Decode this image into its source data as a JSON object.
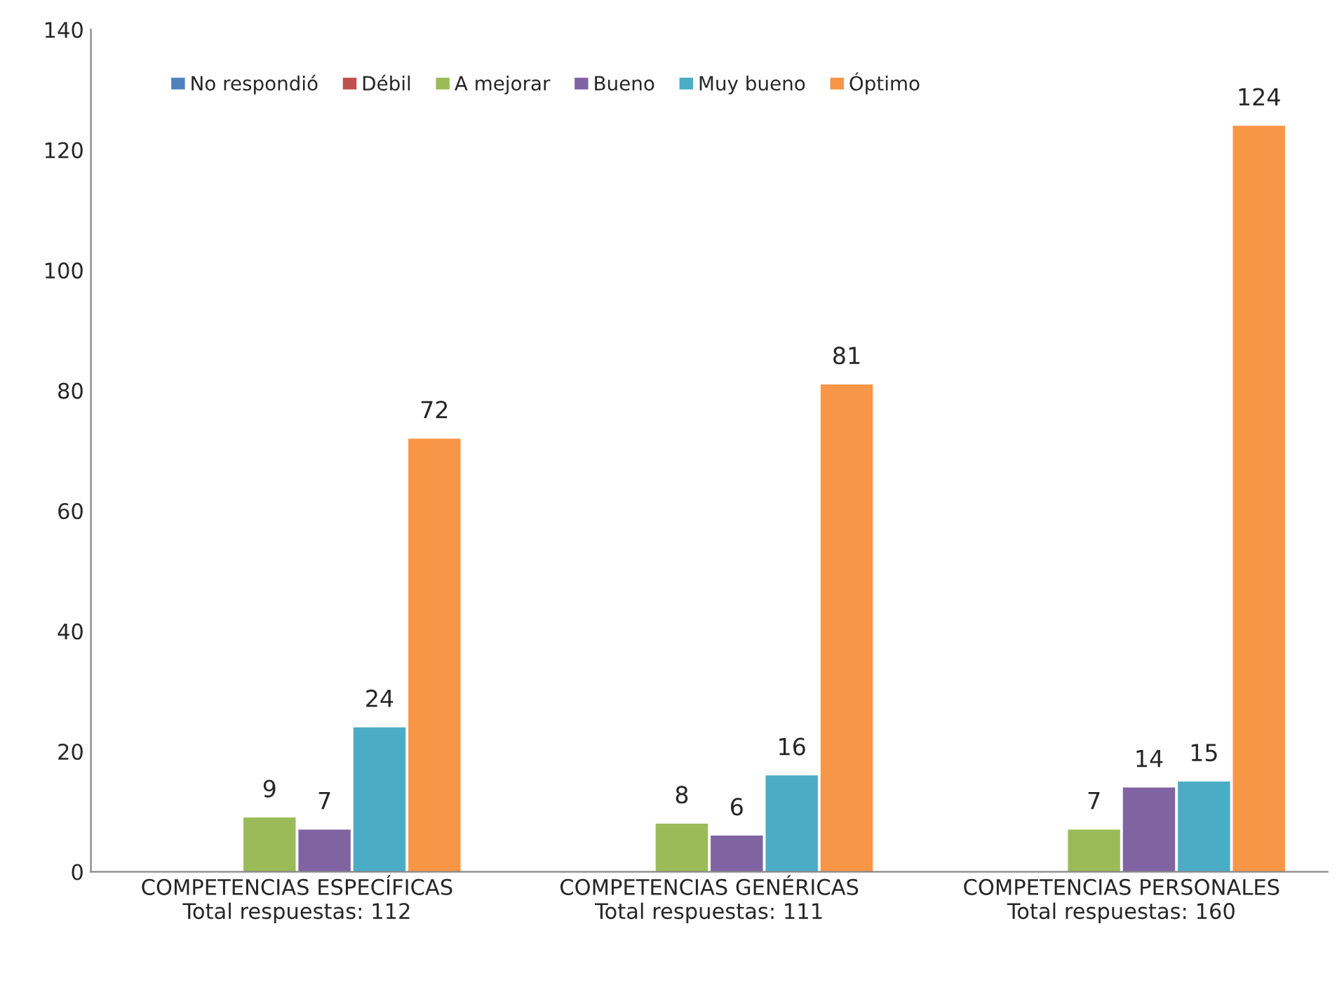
{
  "chart_data": {
    "type": "bar",
    "categories": [
      "COMPETENCIAS ESPECÍFICAS\nTotal respuestas: 112",
      "COMPETENCIAS GENÉRICAS\nTotal respuestas: 111",
      "COMPETENCIAS PERSONALES\nTotal respuestas: 160"
    ],
    "series": [
      {
        "name": "No respondió",
        "color": "#4f81bd",
        "values": [
          null,
          null,
          null
        ]
      },
      {
        "name": "Débil",
        "color": "#c0504d",
        "values": [
          null,
          null,
          null
        ]
      },
      {
        "name": "A mejorar",
        "color": "#9bbb59",
        "values": [
          9,
          8,
          7
        ]
      },
      {
        "name": "Bueno",
        "color": "#8064a2",
        "values": [
          7,
          6,
          14
        ]
      },
      {
        "name": "Muy bueno",
        "color": "#4bacc6",
        "values": [
          24,
          16,
          15
        ]
      },
      {
        "name": "Óptimo",
        "color": "#f79646",
        "values": [
          72,
          81,
          124
        ]
      }
    ],
    "ylim": [
      0,
      140
    ],
    "yticks": [
      0,
      20,
      40,
      60,
      80,
      100,
      120,
      140
    ],
    "data_labels": true,
    "grid": false,
    "legend": "top left"
  }
}
